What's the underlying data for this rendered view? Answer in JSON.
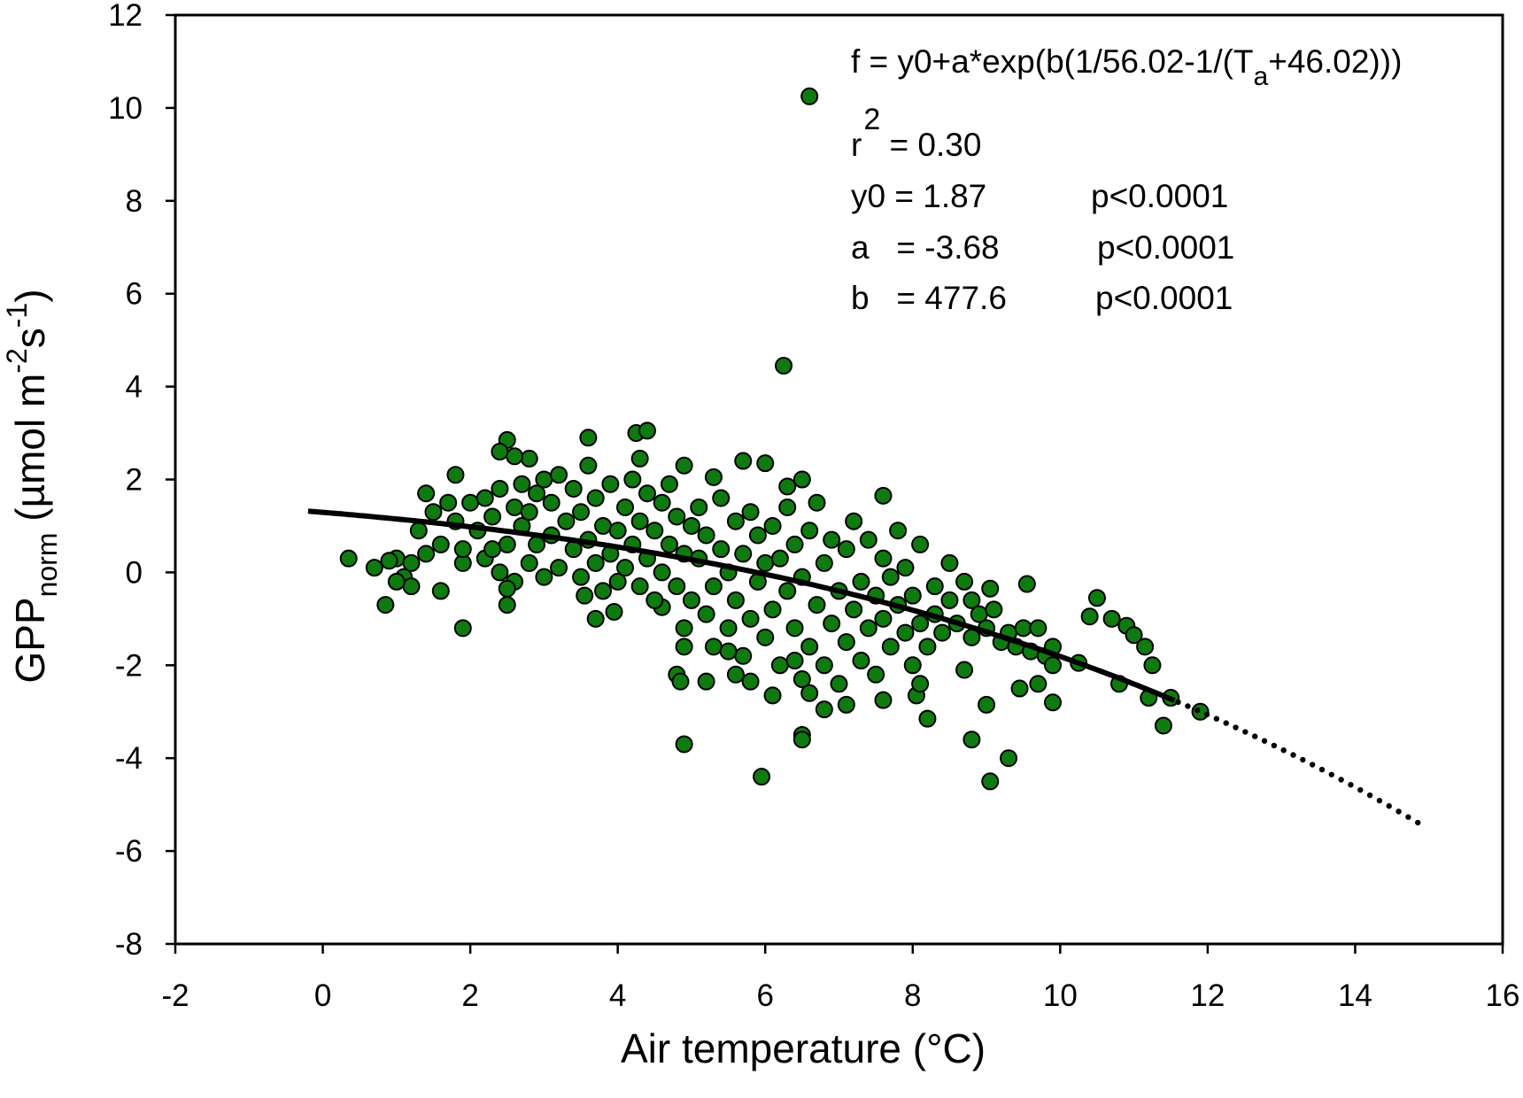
{
  "chart_data": {
    "type": "scatter",
    "title": "",
    "xlabel": "Air temperature (°C)",
    "ylabel": {
      "main": "GPP",
      "sub": "norm",
      "unit_a": " (µmol m",
      "sup1": "-2",
      "unit_b": "s",
      "sup2": "-1",
      "unit_c": ")"
    },
    "xlim": [
      -2,
      16
    ],
    "ylim": [
      -8,
      12
    ],
    "xticks": [
      -2,
      0,
      2,
      4,
      6,
      8,
      10,
      12,
      14,
      16
    ],
    "yticks": [
      -8,
      -6,
      -4,
      -2,
      0,
      2,
      4,
      6,
      8,
      10,
      12
    ],
    "grid": false,
    "colors": {
      "marker_fill": "#0f7a0f",
      "marker_edge": "#000000",
      "fit_line": "#000000"
    },
    "fit": {
      "model": "y0+a*exp(b(1/56.02-1/(Ta+46.02)))",
      "y0": 1.87,
      "a": -3.68,
      "b": 477.6,
      "x_range": [
        -0.2,
        14.9
      ],
      "solid_until": 11.6
    },
    "annotations": {
      "formula_a": "f = y0+a*exp(b(1/56.02-1/(T",
      "formula_sub": "a",
      "formula_b": "+46.02)))",
      "r2_r": "r",
      "r2_sup": "2",
      "r2_val": " = 0.30",
      "y0_text": "y0 = 1.87",
      "y0_p": "p<0.0001",
      "a_text": "a   = -3.68",
      "a_p": "p<0.0001",
      "b_text": "b   = 477.6",
      "b_p": "p<0.0001"
    },
    "points": [
      [
        6.6,
        10.25
      ],
      [
        6.25,
        4.45
      ],
      [
        5.95,
        -4.4
      ],
      [
        9.05,
        -4.5
      ],
      [
        9.3,
        -4.0
      ],
      [
        8.8,
        -3.6
      ],
      [
        4.9,
        -3.7
      ],
      [
        6.5,
        -3.5
      ],
      [
        6.5,
        -3.6
      ],
      [
        11.4,
        -3.3
      ],
      [
        8.2,
        -3.15
      ],
      [
        1.9,
        -1.2
      ],
      [
        0.85,
        -0.7
      ],
      [
        0.35,
        0.3
      ],
      [
        0.7,
        0.1
      ],
      [
        3.6,
        2.9
      ],
      [
        4.25,
        3.0
      ],
      [
        4.4,
        3.05
      ],
      [
        2.5,
        2.85
      ],
      [
        1.8,
        2.1
      ],
      [
        10.5,
        -0.55
      ],
      [
        10.4,
        -0.95
      ],
      [
        10.7,
        -1.0
      ],
      [
        10.9,
        -1.15
      ],
      [
        11.0,
        -1.35
      ],
      [
        11.15,
        -1.6
      ],
      [
        11.25,
        -2.0
      ],
      [
        10.8,
        -2.4
      ],
      [
        11.2,
        -2.7
      ],
      [
        11.5,
        -2.7
      ],
      [
        11.9,
        -3.0
      ],
      [
        9.55,
        -0.25
      ],
      [
        9.05,
        -0.35
      ],
      [
        9.9,
        -2.8
      ],
      [
        9.7,
        -2.4
      ],
      [
        9.45,
        -2.5
      ],
      [
        9.0,
        -2.85
      ],
      [
        10.25,
        -1.95
      ],
      [
        8.7,
        -2.1
      ],
      [
        7.1,
        -2.85
      ],
      [
        6.8,
        -2.95
      ],
      [
        6.1,
        -2.65
      ],
      [
        5.8,
        -2.35
      ],
      [
        4.8,
        -2.2
      ],
      [
        4.85,
        -2.35
      ],
      [
        5.2,
        -2.35
      ],
      [
        5.6,
        -2.2
      ],
      [
        7.6,
        -2.75
      ],
      [
        8.05,
        -2.65
      ],
      [
        8.1,
        -2.4
      ],
      [
        3.7,
        -1.0
      ],
      [
        3.95,
        -0.85
      ],
      [
        4.6,
        -0.75
      ],
      [
        5.7,
        2.4
      ],
      [
        6.0,
        2.35
      ],
      [
        4.9,
        2.3
      ],
      [
        2.8,
        2.45
      ],
      [
        2.6,
        2.5
      ],
      [
        2.4,
        2.6
      ],
      [
        4.3,
        2.45
      ],
      [
        5.3,
        2.05
      ],
      [
        6.5,
        2.0
      ],
      [
        6.3,
        1.85
      ],
      [
        7.6,
        1.65
      ],
      [
        1.0,
        0.3
      ],
      [
        1.1,
        -0.1
      ],
      [
        1.2,
        0.2
      ],
      [
        1.3,
        0.9
      ],
      [
        1.4,
        1.7
      ],
      [
        1.4,
        0.4
      ],
      [
        1.5,
        1.3
      ],
      [
        1.6,
        -0.4
      ],
      [
        1.6,
        0.6
      ],
      [
        1.7,
        1.5
      ],
      [
        1.8,
        1.1
      ],
      [
        1.9,
        0.2
      ],
      [
        1.9,
        0.5
      ],
      [
        1.2,
        -0.3
      ],
      [
        1.0,
        -0.2
      ],
      [
        0.9,
        0.25
      ],
      [
        2.0,
        1.5
      ],
      [
        2.1,
        0.9
      ],
      [
        2.2,
        0.3
      ],
      [
        2.2,
        1.6
      ],
      [
        2.3,
        1.2
      ],
      [
        2.4,
        0.0
      ],
      [
        2.4,
        1.8
      ],
      [
        2.5,
        -0.7
      ],
      [
        2.5,
        0.6
      ],
      [
        2.6,
        1.4
      ],
      [
        2.6,
        -0.2
      ],
      [
        2.7,
        1.0
      ],
      [
        2.7,
        1.9
      ],
      [
        2.8,
        0.2
      ],
      [
        2.8,
        1.3
      ],
      [
        2.9,
        0.6
      ],
      [
        2.9,
        1.7
      ],
      [
        3.0,
        -0.1
      ],
      [
        3.0,
        2.0
      ],
      [
        2.5,
        -0.35
      ],
      [
        2.3,
        0.5
      ],
      [
        3.1,
        0.8
      ],
      [
        3.1,
        1.5
      ],
      [
        3.2,
        0.1
      ],
      [
        3.2,
        2.1
      ],
      [
        3.3,
        1.1
      ],
      [
        3.4,
        0.5
      ],
      [
        3.4,
        1.8
      ],
      [
        3.5,
        -0.1
      ],
      [
        3.5,
        1.3
      ],
      [
        3.6,
        0.7
      ],
      [
        3.6,
        2.3
      ],
      [
        3.7,
        0.2
      ],
      [
        3.7,
        1.6
      ],
      [
        3.8,
        1.0
      ],
      [
        3.8,
        -0.4
      ],
      [
        3.9,
        0.4
      ],
      [
        3.9,
        1.9
      ],
      [
        4.0,
        0.9
      ],
      [
        4.0,
        -0.2
      ],
      [
        3.55,
        -0.5
      ],
      [
        4.1,
        1.4
      ],
      [
        4.1,
        0.1
      ],
      [
        4.2,
        2.0
      ],
      [
        4.2,
        0.6
      ],
      [
        4.3,
        -0.3
      ],
      [
        4.3,
        1.1
      ],
      [
        4.4,
        1.7
      ],
      [
        4.4,
        0.3
      ],
      [
        4.5,
        -0.6
      ],
      [
        4.5,
        0.9
      ],
      [
        4.6,
        1.5
      ],
      [
        4.6,
        0.0
      ],
      [
        4.7,
        0.6
      ],
      [
        4.7,
        1.9
      ],
      [
        4.8,
        -0.3
      ],
      [
        4.8,
        1.2
      ],
      [
        4.9,
        0.4
      ],
      [
        4.9,
        -1.2
      ],
      [
        5.0,
        1.0
      ],
      [
        5.0,
        -0.6
      ],
      [
        4.9,
        -1.6
      ],
      [
        5.1,
        0.3
      ],
      [
        5.1,
        1.4
      ],
      [
        5.2,
        -0.9
      ],
      [
        5.2,
        0.8
      ],
      [
        5.3,
        -0.3
      ],
      [
        5.3,
        -1.6
      ],
      [
        5.4,
        0.5
      ],
      [
        5.4,
        1.6
      ],
      [
        5.5,
        -1.2
      ],
      [
        5.5,
        0.0
      ],
      [
        5.6,
        1.1
      ],
      [
        5.6,
        -0.6
      ],
      [
        5.7,
        -1.8
      ],
      [
        5.7,
        0.4
      ],
      [
        5.8,
        -1.0
      ],
      [
        5.8,
        1.3
      ],
      [
        5.9,
        -0.2
      ],
      [
        5.9,
        0.8
      ],
      [
        6.0,
        -1.4
      ],
      [
        6.0,
        0.2
      ],
      [
        5.5,
        -1.7
      ],
      [
        6.1,
        -0.8
      ],
      [
        6.1,
        1.0
      ],
      [
        6.2,
        -2.0
      ],
      [
        6.2,
        0.3
      ],
      [
        6.3,
        -0.4
      ],
      [
        6.3,
        1.4
      ],
      [
        6.4,
        -1.2
      ],
      [
        6.4,
        0.6
      ],
      [
        6.5,
        -2.3
      ],
      [
        6.5,
        -0.1
      ],
      [
        6.6,
        -1.6
      ],
      [
        6.6,
        0.9
      ],
      [
        6.7,
        -0.7
      ],
      [
        6.7,
        1.5
      ],
      [
        6.8,
        -2.0
      ],
      [
        6.8,
        0.2
      ],
      [
        6.9,
        -1.1
      ],
      [
        6.9,
        0.7
      ],
      [
        7.0,
        -0.4
      ],
      [
        7.0,
        -2.4
      ],
      [
        6.6,
        -2.6
      ],
      [
        6.4,
        -1.9
      ],
      [
        7.1,
        -1.5
      ],
      [
        7.1,
        0.5
      ],
      [
        7.2,
        -0.8
      ],
      [
        7.2,
        1.1
      ],
      [
        7.3,
        -1.9
      ],
      [
        7.3,
        -0.2
      ],
      [
        7.4,
        -1.2
      ],
      [
        7.4,
        0.7
      ],
      [
        7.5,
        -0.5
      ],
      [
        7.5,
        -2.2
      ],
      [
        7.6,
        -1.0
      ],
      [
        7.6,
        0.3
      ],
      [
        7.7,
        -1.6
      ],
      [
        7.7,
        -0.1
      ],
      [
        7.8,
        -0.7
      ],
      [
        7.8,
        0.9
      ],
      [
        7.9,
        -1.3
      ],
      [
        7.9,
        0.1
      ],
      [
        8.0,
        -0.5
      ],
      [
        8.0,
        -2.0
      ],
      [
        8.1,
        -1.1
      ],
      [
        8.1,
        0.6
      ],
      [
        8.2,
        -1.6
      ],
      [
        8.3,
        -0.3
      ],
      [
        8.3,
        -0.9
      ],
      [
        8.4,
        -1.3
      ],
      [
        8.5,
        0.2
      ],
      [
        8.5,
        -0.6
      ],
      [
        8.6,
        -1.1
      ],
      [
        8.7,
        -0.2
      ],
      [
        8.8,
        -0.6
      ],
      [
        8.8,
        -1.4
      ],
      [
        8.9,
        -0.9
      ],
      [
        9.0,
        -1.2
      ],
      [
        9.1,
        -0.8
      ],
      [
        9.2,
        -1.5
      ],
      [
        9.3,
        -1.3
      ],
      [
        9.4,
        -1.6
      ],
      [
        9.5,
        -1.2
      ],
      [
        9.6,
        -1.7
      ],
      [
        9.7,
        -1.2
      ],
      [
        9.8,
        -1.8
      ],
      [
        9.9,
        -1.6
      ],
      [
        9.9,
        -2.0
      ]
    ]
  }
}
